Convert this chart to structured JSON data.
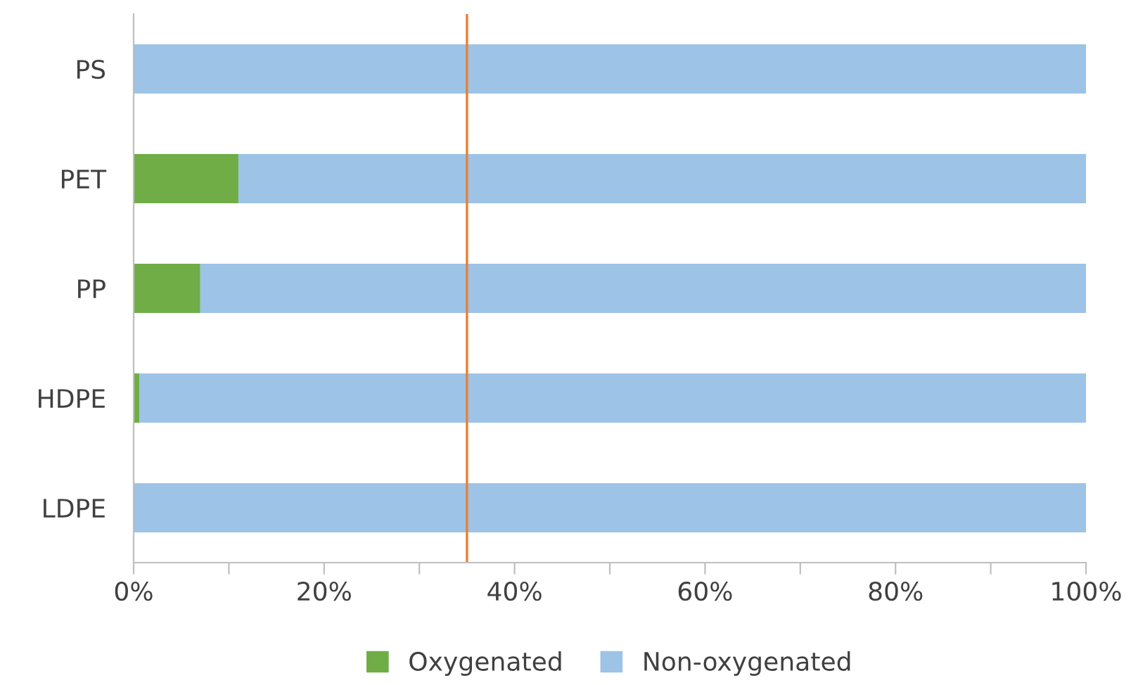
{
  "chart_data": {
    "type": "bar",
    "orientation": "horizontal",
    "stacked": true,
    "categories": [
      "PS",
      "PET",
      "PP",
      "HDPE",
      "LDPE"
    ],
    "series": [
      {
        "name": "Oxygenated",
        "color": "#70ad47",
        "values": [
          0,
          11,
          7,
          0.6,
          0
        ]
      },
      {
        "name": "Non-oxygenated",
        "color": "#9dc3e6",
        "values": [
          100,
          89,
          93,
          99.4,
          100
        ]
      }
    ],
    "xlim": [
      0,
      100
    ],
    "xticks": [
      {
        "value": 0,
        "label": "0%"
      },
      {
        "value": 10,
        "label": null
      },
      {
        "value": 20,
        "label": "20%"
      },
      {
        "value": 30,
        "label": null
      },
      {
        "value": 40,
        "label": "40%"
      },
      {
        "value": 50,
        "label": null
      },
      {
        "value": 60,
        "label": "60%"
      },
      {
        "value": 70,
        "label": null
      },
      {
        "value": 80,
        "label": "80%"
      },
      {
        "value": 90,
        "label": null
      },
      {
        "value": 100,
        "label": "100%"
      }
    ],
    "ref_lines": [
      {
        "axis": "x",
        "value": 35,
        "color": "#ed7d31"
      }
    ],
    "grid": false,
    "legend": "bottom"
  }
}
